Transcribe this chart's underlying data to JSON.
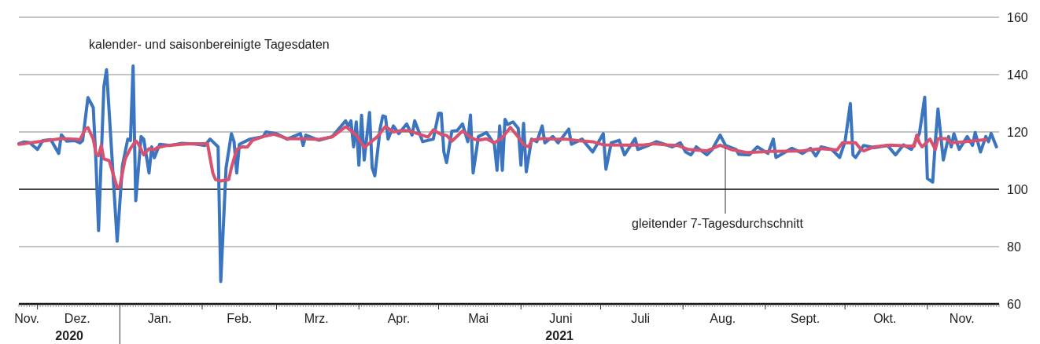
{
  "chart_data": {
    "type": "line",
    "xlim": [
      "2020-11-24",
      "2021-11-28"
    ],
    "ylim": [
      60,
      160
    ],
    "yticks": [
      60,
      80,
      100,
      120,
      140,
      160
    ],
    "xticks": [
      {
        "value": "2020-11-27",
        "label": "Nov."
      },
      {
        "value": "2020-12-01",
        "label": null
      },
      {
        "value": "2020-12-16",
        "label": "Dez."
      },
      {
        "value": "2021-01-01",
        "label": null
      },
      {
        "value": "2021-01-16",
        "label": "Jan."
      },
      {
        "value": "2021-02-01",
        "label": null
      },
      {
        "value": "2021-02-15",
        "label": "Feb."
      },
      {
        "value": "2021-03-01",
        "label": null
      },
      {
        "value": "2021-03-16",
        "label": "Mrz."
      },
      {
        "value": "2021-04-01",
        "label": null
      },
      {
        "value": "2021-04-16",
        "label": "Apr."
      },
      {
        "value": "2021-05-01",
        "label": null
      },
      {
        "value": "2021-05-16",
        "label": "Mai"
      },
      {
        "value": "2021-06-01",
        "label": null
      },
      {
        "value": "2021-06-16",
        "label": "Juni"
      },
      {
        "value": "2021-07-01",
        "label": null
      },
      {
        "value": "2021-07-16",
        "label": "Juli"
      },
      {
        "value": "2021-08-01",
        "label": null
      },
      {
        "value": "2021-08-16",
        "label": "Aug."
      },
      {
        "value": "2021-09-01",
        "label": null
      },
      {
        "value": "2021-09-16",
        "label": "Sept."
      },
      {
        "value": "2021-10-01",
        "label": null
      },
      {
        "value": "2021-10-16",
        "label": "Okt."
      },
      {
        "value": "2021-11-01",
        "label": null
      },
      {
        "value": "2021-11-14",
        "label": "Nov."
      }
    ],
    "grid": "y",
    "legend": false,
    "tick_labels": true,
    "ref_lines": [
      {
        "axis": "y",
        "value": 100,
        "label": null,
        "color": "#444444"
      }
    ],
    "annotations": [
      "2020",
      "2021"
    ],
    "series": [
      {
        "name": "kalender- und saisonbereinigte Tagesdaten",
        "color": "#3b74bf",
        "x": [
          "2020-11-24",
          "2020-11-26",
          "2020-11-28",
          "2020-12-01",
          "2020-12-03",
          "2020-12-06",
          "2020-12-09",
          "2020-12-10",
          "2020-12-12",
          "2020-12-15",
          "2020-12-17",
          "2020-12-18",
          "2020-12-20",
          "2020-12-22",
          "2020-12-23",
          "2020-12-24",
          "2020-12-26",
          "2020-12-27",
          "2020-12-29",
          "2020-12-31",
          "2021-01-02",
          "2021-01-04",
          "2021-01-05",
          "2021-01-06",
          "2021-01-07",
          "2021-01-09",
          "2021-01-10",
          "2021-01-12",
          "2021-01-13",
          "2021-01-14",
          "2021-01-16",
          "2021-01-20",
          "2021-01-24",
          "2021-01-29",
          "2021-02-02",
          "2021-02-04",
          "2021-02-07",
          "2021-02-08",
          "2021-02-10",
          "2021-02-12",
          "2021-02-13",
          "2021-02-14",
          "2021-02-15",
          "2021-02-19",
          "2021-02-24",
          "2021-02-25",
          "2021-03-01",
          "2021-03-05",
          "2021-03-10",
          "2021-03-11",
          "2021-03-12",
          "2021-03-17",
          "2021-03-22",
          "2021-03-27",
          "2021-03-28",
          "2021-03-29",
          "2021-03-30",
          "2021-03-31",
          "2021-04-01",
          "2021-04-02",
          "2021-04-03",
          "2021-04-05",
          "2021-04-06",
          "2021-04-07",
          "2021-04-09",
          "2021-04-10",
          "2021-04-11",
          "2021-04-12",
          "2021-04-14",
          "2021-04-16",
          "2021-04-19",
          "2021-04-21",
          "2021-04-22",
          "2021-04-25",
          "2021-04-29",
          "2021-05-01",
          "2021-05-02",
          "2021-05-03",
          "2021-05-04",
          "2021-05-06",
          "2021-05-08",
          "2021-05-10",
          "2021-05-12",
          "2021-05-13",
          "2021-05-14",
          "2021-05-16",
          "2021-05-19",
          "2021-05-22",
          "2021-05-23",
          "2021-05-24",
          "2021-05-25",
          "2021-05-26",
          "2021-05-27",
          "2021-05-29",
          "2021-05-31",
          "2021-06-01",
          "2021-06-02",
          "2021-06-03",
          "2021-06-05",
          "2021-06-07",
          "2021-06-09",
          "2021-06-10",
          "2021-06-13",
          "2021-06-15",
          "2021-06-19",
          "2021-06-20",
          "2021-06-24",
          "2021-06-28",
          "2021-07-02",
          "2021-07-03",
          "2021-07-05",
          "2021-07-08",
          "2021-07-10",
          "2021-07-14",
          "2021-07-15",
          "2021-07-19",
          "2021-07-22",
          "2021-07-25",
          "2021-07-28",
          "2021-07-31",
          "2021-08-02",
          "2021-08-04",
          "2021-08-06",
          "2021-08-10",
          "2021-08-12",
          "2021-08-15",
          "2021-08-17",
          "2021-08-21",
          "2021-08-22",
          "2021-08-26",
          "2021-08-29",
          "2021-09-02",
          "2021-09-04",
          "2021-09-05",
          "2021-09-11",
          "2021-09-15",
          "2021-09-18",
          "2021-09-20",
          "2021-09-22",
          "2021-09-26",
          "2021-09-29",
          "2021-10-01",
          "2021-10-03",
          "2021-10-04",
          "2021-10-05",
          "2021-10-08",
          "2021-10-12",
          "2021-10-17",
          "2021-10-20",
          "2021-10-23",
          "2021-10-26",
          "2021-10-29",
          "2021-10-31",
          "2021-11-01",
          "2021-11-03",
          "2021-11-04",
          "2021-11-05",
          "2021-11-07",
          "2021-11-09",
          "2021-11-10",
          "2021-11-11",
          "2021-11-13",
          "2021-11-16",
          "2021-11-18",
          "2021-11-19",
          "2021-11-21",
          "2021-11-23",
          "2021-11-24",
          "2021-11-25",
          "2021-11-27"
        ],
        "values": [
          115.9,
          116.5,
          116.3,
          113.9,
          117,
          117.3,
          112.5,
          119,
          116.8,
          117,
          116.2,
          117,
          132,
          128.5,
          110,
          85.6,
          135.8,
          141.7,
          112,
          81.9,
          108.4,
          117.5,
          117,
          143,
          96,
          118.4,
          117.5,
          105.7,
          114.8,
          111,
          115.7,
          115.3,
          116,
          115.8,
          115.3,
          117.5,
          114.8,
          67.8,
          107.5,
          119.4,
          116.6,
          105.7,
          115.7,
          117.5,
          118.4,
          120,
          119.4,
          117.5,
          119.4,
          115.3,
          118.9,
          117.1,
          118.4,
          123.9,
          122,
          123.9,
          114.8,
          123.5,
          108.4,
          125.8,
          110.2,
          126.8,
          107.5,
          104.7,
          121.2,
          125.6,
          125.3,
          117.5,
          122.1,
          119.4,
          122.8,
          118.9,
          123.9,
          116.6,
          117.5,
          126.5,
          126.5,
          113,
          109.3,
          120.3,
          120.5,
          122.8,
          116.6,
          125.9,
          105.7,
          118.4,
          119.8,
          115.7,
          106.6,
          122.1,
          106.6,
          124.4,
          122.6,
          123.5,
          121.2,
          108.4,
          123,
          106.1,
          117.5,
          116.6,
          122.1,
          116.2,
          118.4,
          116.2,
          121,
          115.7,
          117.5,
          113,
          119.4,
          107,
          116.2,
          117.1,
          112,
          117.7,
          113.9,
          115.3,
          116.6,
          115.7,
          114.8,
          116.2,
          113,
          112,
          114.8,
          112,
          113.9,
          118.9,
          115.3,
          113.9,
          112.2,
          112,
          114.8,
          112.5,
          117.5,
          111.1,
          114.3,
          112.5,
          114.3,
          111.6,
          114.8,
          113.9,
          111.1,
          116.6,
          129.9,
          112,
          111.1,
          115.3,
          114.5,
          115.3,
          112,
          115.5,
          113.9,
          119.4,
          132.1,
          103.8,
          102.5,
          116.6,
          128,
          110.2,
          118.4,
          114.8,
          119.4,
          113.9,
          118.4,
          115.3,
          119.8,
          113,
          118.4,
          116.6,
          119.5,
          114.8
        ]
      },
      {
        "name": "gleitender 7-Tagesdurchschnitt",
        "color": "#d8516f",
        "x": [
          "2020-11-24",
          "2020-12-10",
          "2020-12-15",
          "2020-12-17",
          "2020-12-19",
          "2020-12-20",
          "2020-12-22",
          "2020-12-23",
          "2020-12-24",
          "2020-12-25",
          "2020-12-26",
          "2020-12-28",
          "2020-12-31",
          "2021-01-01",
          "2021-01-03",
          "2021-01-05",
          "2021-01-07",
          "2021-01-08",
          "2021-01-10",
          "2021-01-12",
          "2021-01-14",
          "2021-01-15",
          "2021-01-19",
          "2021-01-26",
          "2021-02-03",
          "2021-02-05",
          "2021-02-06",
          "2021-02-08",
          "2021-02-11",
          "2021-02-12",
          "2021-02-14",
          "2021-02-16",
          "2021-02-18",
          "2021-02-20",
          "2021-02-24",
          "2021-02-28",
          "2021-03-05",
          "2021-03-12",
          "2021-03-17",
          "2021-03-22",
          "2021-03-27",
          "2021-03-28",
          "2021-03-31",
          "2021-04-03",
          "2021-04-08",
          "2021-04-11",
          "2021-04-14",
          "2021-04-17",
          "2021-04-20",
          "2021-04-27",
          "2021-04-29",
          "2021-05-02",
          "2021-05-04",
          "2021-05-06",
          "2021-05-10",
          "2021-05-14",
          "2021-05-16",
          "2021-05-19",
          "2021-05-22",
          "2021-05-25",
          "2021-05-28",
          "2021-05-31",
          "2021-06-02",
          "2021-06-04",
          "2021-06-05",
          "2021-06-09",
          "2021-06-14",
          "2021-06-18",
          "2021-06-23",
          "2021-06-28",
          "2021-07-02",
          "2021-07-09",
          "2021-07-17",
          "2021-07-21",
          "2021-07-26",
          "2021-07-30",
          "2021-08-03",
          "2021-08-10",
          "2021-08-15",
          "2021-08-19",
          "2021-08-25",
          "2021-09-03",
          "2021-09-15",
          "2021-09-22",
          "2021-09-28",
          "2021-09-30",
          "2021-10-05",
          "2021-10-07",
          "2021-10-08",
          "2021-10-12",
          "2021-10-18",
          "2021-10-27",
          "2021-10-28",
          "2021-10-29",
          "2021-10-30",
          "2021-11-02",
          "2021-11-04",
          "2021-11-05",
          "2021-11-08",
          "2021-11-10",
          "2021-11-15",
          "2021-11-23"
        ],
        "values": [
          115.7,
          117.7,
          117.5,
          117.3,
          121,
          121.5,
          117.5,
          112.5,
          111.7,
          115.3,
          110.6,
          110,
          100.6,
          101,
          110.5,
          114.2,
          116.9,
          115.8,
          112,
          114.2,
          113.7,
          114.5,
          115.3,
          115.8,
          115.9,
          105.7,
          103.4,
          102.9,
          103.4,
          107.5,
          113.9,
          114.8,
          114.7,
          117.1,
          118.4,
          119.2,
          117.7,
          117.6,
          117.4,
          118.3,
          121.8,
          121.2,
          118.9,
          114.6,
          118.4,
          121.9,
          120,
          120.5,
          120.4,
          118.2,
          120.7,
          119.1,
          118.8,
          116.8,
          120.3,
          117.6,
          117.1,
          117.6,
          116.2,
          118,
          121.6,
          118.2,
          115.6,
          114.8,
          117.1,
          117.7,
          117.5,
          117.5,
          116.9,
          116.6,
          115.5,
          115.4,
          115.4,
          115.9,
          115.5,
          115.3,
          113.9,
          113.4,
          115.4,
          113.9,
          112.8,
          113.2,
          113.4,
          114.2,
          113.7,
          116.2,
          116.2,
          113.9,
          113.4,
          114.8,
          115.4,
          115,
          118.9,
          116.2,
          114.8,
          117.5,
          113.9,
          117.7,
          117.7,
          116.2,
          116.6,
          117.3
        ]
      }
    ]
  }
}
